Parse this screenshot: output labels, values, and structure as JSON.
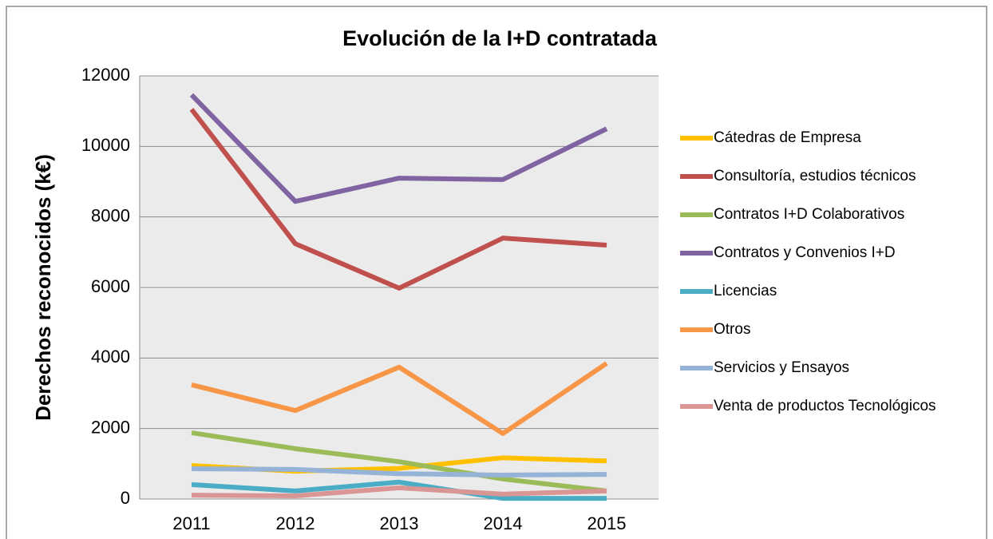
{
  "chart_data": {
    "type": "line",
    "title": "Evolución de la I+D contratada",
    "y_label": "Derechos reconocidos (k€)",
    "categories": [
      "2011",
      "2012",
      "2013",
      "2014",
      "2015"
    ],
    "ylim": [
      0,
      12000
    ],
    "yticks": [
      0,
      2000,
      4000,
      6000,
      8000,
      10000,
      12000
    ],
    "grid": true,
    "legend": "right",
    "series": [
      {
        "name": "Cátedras de Empresa",
        "color": "#ffc000",
        "values": [
          950,
          790,
          870,
          1170,
          1080
        ]
      },
      {
        "name": "Consultoría, estudios técnicos",
        "color": "#c0504d",
        "values": [
          11050,
          7240,
          5980,
          7400,
          7200
        ]
      },
      {
        "name": "Contratos I+D Colaborativos",
        "color": "#9bbb59",
        "values": [
          1880,
          1430,
          1060,
          570,
          230
        ]
      },
      {
        "name": "Contratos y Convenios I+D",
        "color": "#8064a2",
        "values": [
          11460,
          8440,
          9100,
          9060,
          10500
        ]
      },
      {
        "name": "Licencias",
        "color": "#4bacc6",
        "values": [
          410,
          230,
          480,
          20,
          20
        ]
      },
      {
        "name": "Otros",
        "color": "#f79646",
        "values": [
          3240,
          2510,
          3740,
          1860,
          3850
        ]
      },
      {
        "name": "Servicios y Ensayos",
        "color": "#95b3d7",
        "values": [
          860,
          840,
          720,
          680,
          700
        ]
      },
      {
        "name": "Venta de productos Tecnológicos",
        "color": "#d99694",
        "values": [
          110,
          90,
          320,
          140,
          230
        ]
      }
    ]
  }
}
